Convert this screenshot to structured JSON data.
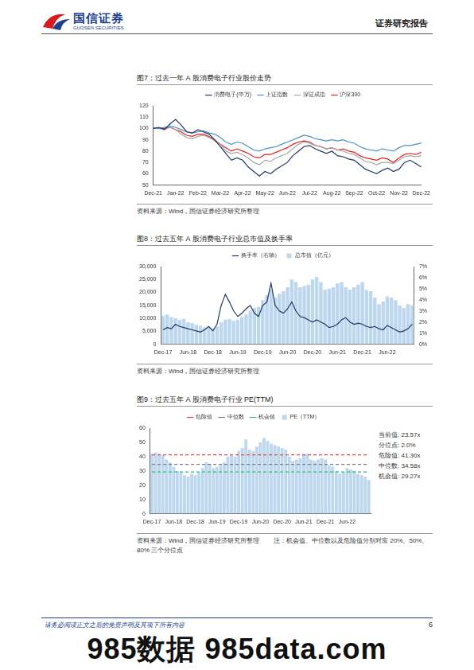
{
  "header": {
    "logo_cn": "国信证券",
    "logo_en": "GUOSEN SECURITIES",
    "report_type": "证券研究报告"
  },
  "chart_data": [
    {
      "type": "line",
      "title": "图7：过去一年 A 股消费电子行业股价走势",
      "source": "资料来源：Wind，国信证券经济研究所整理",
      "categories": [
        "Dec-21",
        null,
        null,
        null,
        "Jan-22",
        null,
        null,
        null,
        "Feb-22",
        null,
        null,
        null,
        "Mar-22",
        null,
        null,
        null,
        "Apr-22",
        null,
        null,
        null,
        "May-22",
        null,
        null,
        null,
        "Jun-22",
        null,
        null,
        null,
        "Jul-22",
        null,
        null,
        null,
        "Aug-22",
        null,
        null,
        null,
        "Sep-22",
        null,
        null,
        null,
        "Oct-22",
        null,
        null,
        null,
        "Nov-22",
        null,
        null,
        null,
        "Dec-22"
      ],
      "series": [
        {
          "name": "消费电子(申万)",
          "color": "#1f3864",
          "values": [
            100,
            101,
            99,
            104,
            108,
            103,
            97,
            96,
            99,
            97,
            95,
            90,
            84,
            78,
            72,
            74,
            72,
            66,
            62,
            58,
            62,
            60,
            64,
            67,
            70,
            76,
            80,
            84,
            85,
            82,
            80,
            78,
            80,
            76,
            75,
            73,
            72,
            68,
            64,
            62,
            60,
            63,
            65,
            62,
            64,
            70,
            72,
            69,
            66
          ]
        },
        {
          "name": "上证指数",
          "color": "#4a90c8",
          "values": [
            100,
            100,
            101,
            102,
            101,
            99,
            97,
            96,
            97,
            98,
            96,
            95,
            92,
            88,
            86,
            88,
            87,
            84,
            81,
            80,
            82,
            83,
            84,
            86,
            88,
            90,
            92,
            94,
            93,
            91,
            90,
            89,
            90,
            89,
            90,
            88,
            87,
            84,
            82,
            81,
            80,
            82,
            81,
            80,
            83,
            85,
            85,
            86,
            87
          ]
        },
        {
          "name": "深证成指",
          "color": "#a6a6a6",
          "values": [
            100,
            100,
            99,
            101,
            99,
            95,
            92,
            91,
            93,
            94,
            92,
            89,
            86,
            80,
            78,
            79,
            77,
            74,
            70,
            68,
            72,
            71,
            74,
            76,
            78,
            82,
            86,
            88,
            87,
            85,
            84,
            82,
            83,
            81,
            80,
            78,
            77,
            74,
            71,
            70,
            68,
            70,
            70,
            69,
            72,
            75,
            76,
            75,
            76
          ]
        },
        {
          "name": "沪深300",
          "color": "#e02020",
          "values": [
            100,
            100,
            100,
            101,
            99,
            97,
            94,
            93,
            95,
            95,
            93,
            90,
            86,
            83,
            80,
            82,
            80,
            78,
            75,
            74,
            77,
            77,
            79,
            81,
            83,
            86,
            88,
            89,
            88,
            85,
            84,
            82,
            83,
            81,
            82,
            80,
            79,
            76,
            74,
            73,
            72,
            74,
            73,
            70,
            74,
            77,
            78,
            77,
            79
          ]
        }
      ],
      "ylim": [
        50,
        120
      ],
      "yticks": [
        50,
        60,
        70,
        80,
        90,
        100,
        110,
        120
      ],
      "grid": false,
      "legend": "top"
    },
    {
      "type": "bar",
      "title": "图8：过去五年 A 股消费电子行业总市值及换手率",
      "source": "资料来源：Wind，国信证券经济研究所整理",
      "categories": [
        "Dec-17",
        null,
        null,
        null,
        null,
        null,
        "Jun-18",
        null,
        null,
        null,
        null,
        null,
        "Dec-18",
        null,
        null,
        null,
        null,
        null,
        "Jun-19",
        null,
        null,
        null,
        null,
        null,
        "Dec-19",
        null,
        null,
        null,
        null,
        null,
        "Jun-20",
        null,
        null,
        null,
        null,
        null,
        "Dec-20",
        null,
        null,
        null,
        null,
        null,
        "Jun-21",
        null,
        null,
        null,
        null,
        null,
        "Dec-21",
        null,
        null,
        null,
        null,
        null,
        "Jun-22",
        null,
        null,
        null,
        null,
        null,
        null
      ],
      "series": [
        {
          "name": "总市值（亿元）",
          "type": "bar",
          "color": "#bdd7ee",
          "values": [
            11000,
            11500,
            10500,
            10000,
            9500,
            9800,
            8500,
            8200,
            7500,
            7200,
            6500,
            6800,
            6200,
            6800,
            8500,
            9500,
            9800,
            9000,
            9500,
            10500,
            11500,
            13000,
            14000,
            14500,
            17000,
            19000,
            21000,
            18000,
            19500,
            20500,
            22000,
            25000,
            24000,
            22000,
            22500,
            23000,
            25000,
            26000,
            24000,
            21000,
            21500,
            22000,
            23500,
            24000,
            22000,
            21000,
            22000,
            23000,
            24000,
            21000,
            20500,
            18000,
            15500,
            16500,
            18500,
            18000,
            17000,
            15000,
            14000,
            15500,
            15000
          ]
        },
        {
          "name": "换手率（右轴）",
          "type": "line",
          "axis": "y2",
          "color": "#1f3864",
          "values": [
            1.3,
            1.5,
            1.4,
            1.8,
            1.6,
            1.5,
            1.4,
            1.3,
            1.2,
            1.1,
            1.3,
            1.6,
            1.2,
            1.8,
            3.5,
            4.5,
            3.8,
            3.0,
            2.5,
            2.8,
            3.2,
            3.5,
            2.8,
            2.5,
            3.5,
            3.8,
            5.5,
            3.5,
            3.0,
            2.8,
            3.2,
            3.8,
            3.0,
            2.5,
            2.4,
            2.2,
            2.0,
            2.2,
            2.0,
            1.8,
            1.5,
            1.6,
            1.8,
            2.2,
            2.4,
            2.0,
            1.8,
            1.9,
            1.8,
            1.6,
            1.5,
            1.6,
            1.4,
            1.3,
            1.7,
            1.5,
            1.3,
            1.1,
            1.2,
            1.4,
            1.8
          ]
        }
      ],
      "ylim": [
        0,
        30000
      ],
      "yticks": [
        0,
        {
          "value": 5000,
          "label": "5,000"
        },
        {
          "value": 10000,
          "label": "10,000"
        },
        {
          "value": 15000,
          "label": "15,000"
        },
        {
          "value": 20000,
          "label": "20,000"
        },
        {
          "value": 25000,
          "label": "25,000"
        },
        {
          "value": 30000,
          "label": "30,000"
        }
      ],
      "y2lim": [
        0,
        7
      ],
      "y2ticks": [
        {
          "value": 0,
          "label": "0%"
        },
        {
          "value": 1,
          "label": "1%"
        },
        {
          "value": 2,
          "label": "2%"
        },
        {
          "value": 3,
          "label": "3%"
        },
        {
          "value": 4,
          "label": "4%"
        },
        {
          "value": 5,
          "label": "5%"
        },
        {
          "value": 6,
          "label": "6%"
        },
        {
          "value": 7,
          "label": "7%"
        }
      ],
      "grid": false,
      "legend": "top"
    },
    {
      "type": "bar",
      "title": "图9：过去五年 A 股消费电子行业 PE(TTM)",
      "source": "资料来源：Wind，国信证券经济研究所整理",
      "note": "注：机会值、中位数以及危险值分别对应 20%、50%、80% 三个分位点",
      "categories": [
        "Dec-17",
        null,
        null,
        null,
        null,
        null,
        "Jun-18",
        null,
        null,
        null,
        null,
        null,
        "Dec-18",
        null,
        null,
        null,
        null,
        null,
        "Jun-19",
        null,
        null,
        null,
        null,
        null,
        "Dec-19",
        null,
        null,
        null,
        null,
        null,
        "Jun-20",
        null,
        null,
        null,
        null,
        null,
        "Dec-20",
        null,
        null,
        null,
        null,
        null,
        "Jun-21",
        null,
        null,
        null,
        null,
        null,
        "Dec-21",
        null,
        null,
        null,
        null,
        null,
        "Jun-22",
        null,
        null,
        null,
        null,
        null,
        null
      ],
      "series": [
        {
          "name": "PE（TTM）",
          "color": "#bdd7ee",
          "values": [
            42,
            43,
            42,
            41,
            38,
            36,
            33,
            30,
            29,
            27,
            26,
            28,
            27,
            29,
            32,
            36,
            35,
            32,
            33,
            34,
            36,
            40,
            41,
            40,
            44,
            46,
            52,
            45,
            44,
            47,
            50,
            53,
            51,
            49,
            48,
            47,
            46,
            45,
            40,
            37,
            38,
            39,
            41,
            42,
            38,
            37,
            38,
            39,
            38,
            34,
            33,
            30,
            28,
            29,
            32,
            31,
            30,
            28,
            27,
            26,
            23.57
          ]
        }
      ],
      "reference_lines": [
        {
          "name": "危险值",
          "value": 41.3,
          "color": "#e04848",
          "line_style": "dashed"
        },
        {
          "name": "中位数",
          "value": 34.58,
          "color": "#7f7f7f",
          "line_style": "dashed"
        },
        {
          "name": "机会值",
          "value": 29.27,
          "color": "#2fbf71",
          "line_style": "dashed"
        }
      ],
      "annotations": [
        "当前值: 23.57x",
        "分位点: 2.0%",
        "危险值: 41.30x",
        "中位数: 34.58x",
        "机会值: 29.27x"
      ],
      "ylim": [
        0,
        60
      ],
      "yticks": [
        0,
        10,
        20,
        30,
        40,
        50,
        60
      ],
      "grid": false,
      "legend": "top"
    }
  ],
  "footer": {
    "disclaimer": "请务必阅读正文之后的免责声明及其项下所有内容",
    "page": "6"
  },
  "watermark": "985数据 985data.com"
}
